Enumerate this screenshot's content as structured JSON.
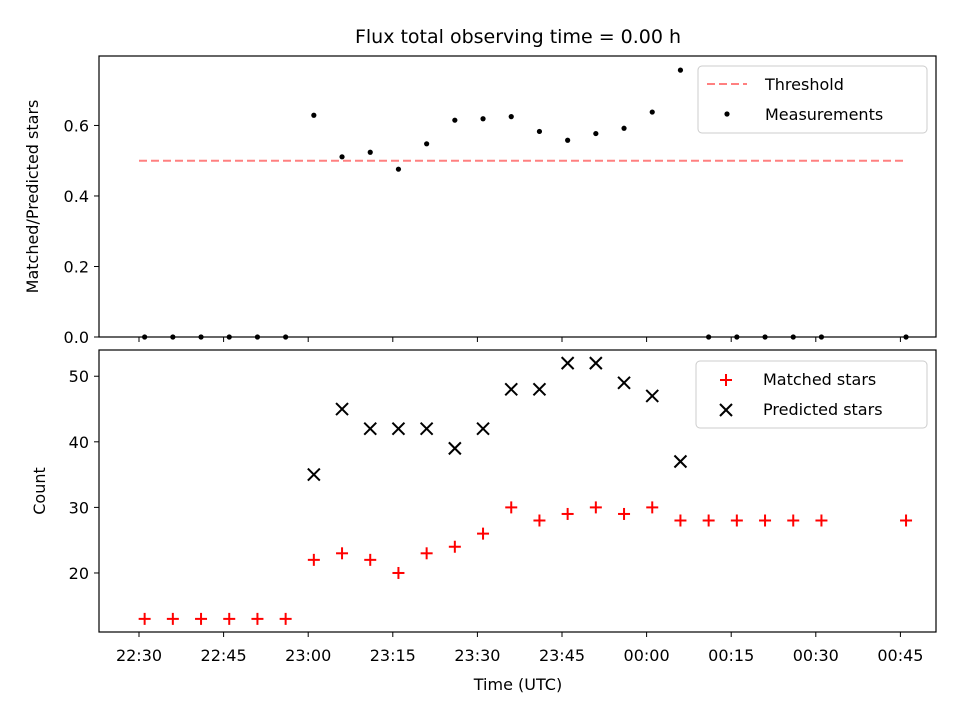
{
  "title": "Flux total observing time = 0.00 h",
  "colors": {
    "threshold": "#ff8080",
    "measurement": "#000000",
    "matched": "#ff0000",
    "predicted": "#000000"
  },
  "chart_data": [
    {
      "type": "scatter",
      "ylabel": "Matched/Predicted stars",
      "ylim": [
        0,
        0.8
      ],
      "yticks": [
        0.0,
        0.2,
        0.4,
        0.6
      ],
      "ytick_labels": [
        "0.0",
        "0.2",
        "0.4",
        "0.6"
      ],
      "legend": {
        "placement": "top-right",
        "entries": [
          "Threshold",
          "Measurements"
        ]
      },
      "series": [
        {
          "name": "Threshold",
          "style": "dashed-line",
          "x": [
            "22:30",
            "00:46"
          ],
          "y": [
            0.5,
            0.5
          ]
        },
        {
          "name": "Measurements",
          "style": "dot",
          "x": [
            "22:31",
            "22:36",
            "22:41",
            "22:46",
            "22:51",
            "22:56",
            "23:01",
            "23:06",
            "23:11",
            "23:16",
            "23:21",
            "23:26",
            "23:31",
            "23:36",
            "23:41",
            "23:46",
            "23:51",
            "23:56",
            "00:01",
            "00:06",
            "00:11",
            "00:16",
            "00:21",
            "00:26",
            "00:31",
            "00:46"
          ],
          "y": [
            0,
            0,
            0,
            0,
            0,
            0,
            0.629,
            0.511,
            0.524,
            0.476,
            0.548,
            0.615,
            0.619,
            0.625,
            0.583,
            0.558,
            0.577,
            0.592,
            0.638,
            0.757,
            0,
            0,
            0,
            0,
            0,
            0
          ]
        }
      ]
    },
    {
      "type": "scatter",
      "xlabel": "Time (UTC)",
      "ylabel": "Count",
      "ylim": [
        11,
        54
      ],
      "yticks": [
        20,
        30,
        40,
        50
      ],
      "ytick_labels": [
        "20",
        "30",
        "40",
        "50"
      ],
      "xticks": [
        "22:30",
        "22:45",
        "23:00",
        "23:15",
        "23:30",
        "23:45",
        "00:00",
        "00:15",
        "00:30",
        "00:45"
      ],
      "legend": {
        "placement": "top-right",
        "entries": [
          "Matched stars",
          "Predicted stars"
        ]
      },
      "series": [
        {
          "name": "Matched stars",
          "marker": "+",
          "x": [
            "22:31",
            "22:36",
            "22:41",
            "22:46",
            "22:51",
            "22:56",
            "23:01",
            "23:06",
            "23:11",
            "23:16",
            "23:21",
            "23:26",
            "23:31",
            "23:36",
            "23:41",
            "23:46",
            "23:51",
            "23:56",
            "00:01",
            "00:06",
            "00:11",
            "00:16",
            "00:21",
            "00:26",
            "00:31",
            "00:46"
          ],
          "y": [
            13,
            13,
            13,
            13,
            13,
            13,
            22,
            23,
            22,
            20,
            23,
            24,
            26,
            30,
            28,
            29,
            30,
            29,
            30,
            28,
            28,
            28,
            28,
            28,
            28,
            28
          ]
        },
        {
          "name": "Predicted stars",
          "marker": "x",
          "x": [
            "23:01",
            "23:06",
            "23:11",
            "23:16",
            "23:21",
            "23:26",
            "23:31",
            "23:36",
            "23:41",
            "23:46",
            "23:51",
            "23:56",
            "00:01",
            "00:06"
          ],
          "y": [
            35,
            45,
            42,
            42,
            42,
            39,
            42,
            48,
            48,
            52,
            52,
            49,
            47,
            37
          ]
        }
      ]
    }
  ]
}
